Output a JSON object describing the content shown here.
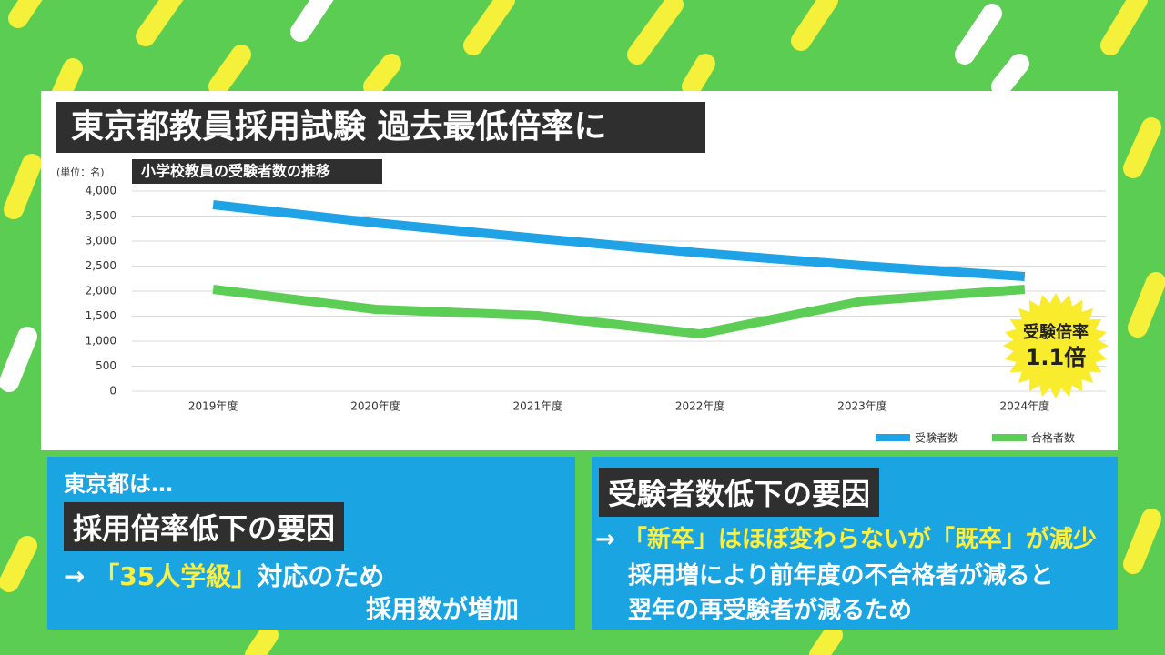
{
  "header": {
    "title": "東京都教員採用試験 過去最低倍率に"
  },
  "chart_data": {
    "type": "line",
    "subtitle": "小学校教員の受験者数の推移",
    "unit_label": "(単位：名)",
    "categories": [
      "2019年度",
      "2020年度",
      "2021年度",
      "2022年度",
      "2023年度",
      "2024年度"
    ],
    "series": [
      {
        "name": "受験者数",
        "color": "#1fa3e6",
        "values": [
          3727,
          3364,
          3055,
          2764,
          2509,
          2290
        ]
      },
      {
        "name": "合格者数",
        "color": "#5ccd55",
        "values": [
          2036,
          1636,
          1509,
          1145,
          1800,
          2036
        ]
      }
    ],
    "ylim": [
      0,
      4000
    ],
    "yticks": [
      0,
      500,
      {
        "value": 1000,
        "label": "1,000"
      },
      {
        "value": 1500,
        "label": "1,500"
      },
      {
        "value": 2000,
        "label": "2,000"
      },
      {
        "value": 2500,
        "label": "2,500"
      },
      {
        "value": 3000,
        "label": "3,000"
      },
      {
        "value": 3500,
        "label": "3,500"
      },
      {
        "value": 4000,
        "label": "4,000"
      }
    ],
    "grid": true,
    "legend": "bottom-right",
    "annotation": [
      "受験倍率",
      "1.1倍"
    ]
  },
  "left_panel": {
    "intro": "東京都は…",
    "heading": "採用倍率低下の要因",
    "arrow": "→",
    "highlight": "「35人学級」",
    "rest": "対応のため",
    "line2": "採用数が増加"
  },
  "right_panel": {
    "heading": "受験者数低下の要因",
    "arrow": "→",
    "highlight": "「新卒」はほぼ変わらないが「既卒」が減少",
    "line2": "採用増により前年度の不合格者が減ると",
    "line3": "翌年の再受験者が減るため"
  }
}
